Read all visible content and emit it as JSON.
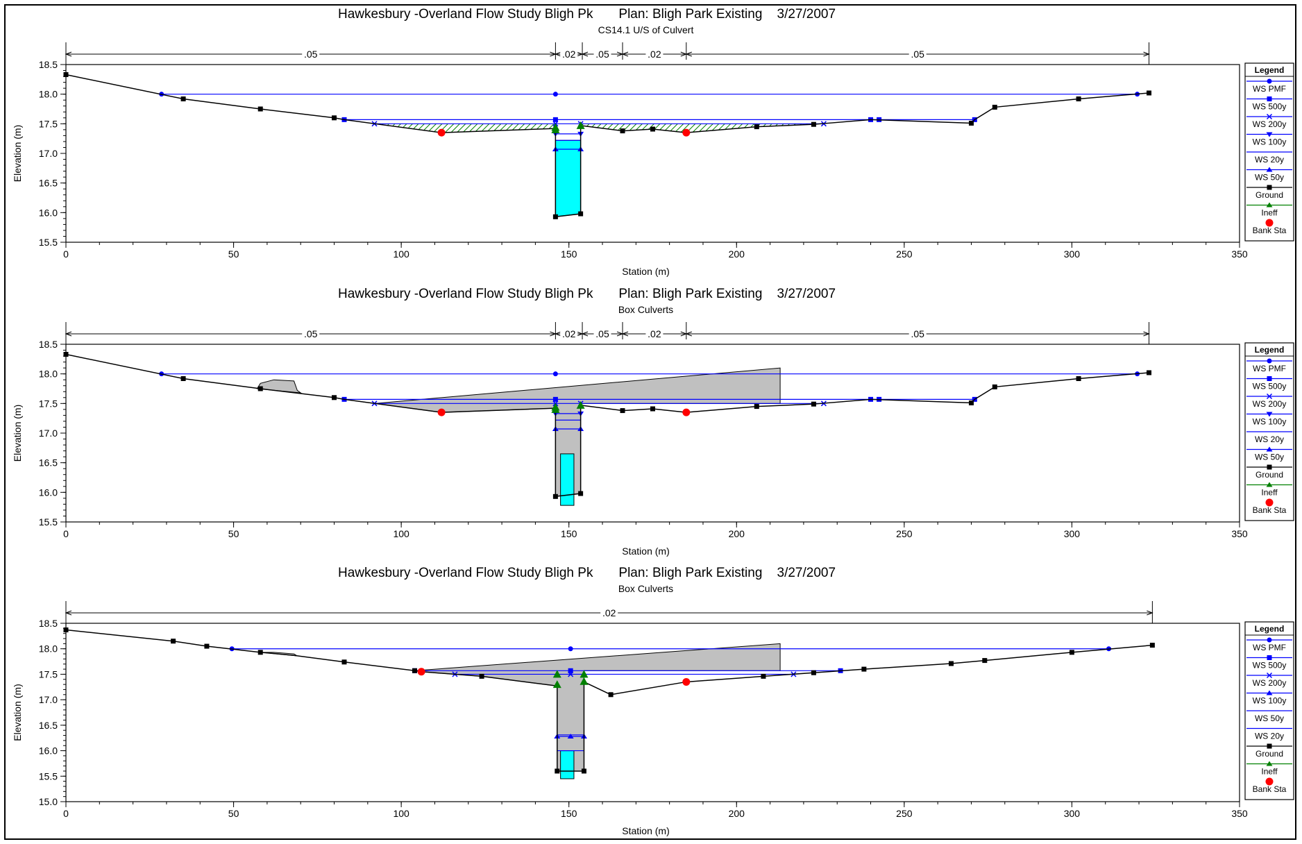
{
  "legend_title": "Legend",
  "legend_items": [
    {
      "name": "WS PMF",
      "color": "#0000ff",
      "marker": "circle"
    },
    {
      "name": "WS 500y",
      "color": "#0000ff",
      "marker": "square"
    },
    {
      "name": "WS 200y",
      "color": "#0000ff",
      "marker": "x"
    },
    {
      "name": "WS 100y",
      "color": "#0000ff",
      "marker": "tri-down"
    },
    {
      "name": "WS 20y",
      "color": "#0000ff",
      "marker": "none"
    },
    {
      "name": "WS 50y",
      "color": "#0000ff",
      "marker": "tri-up"
    },
    {
      "name": "Ground",
      "color": "#000000",
      "marker": "square"
    },
    {
      "name": "Ineff",
      "color": "#008000",
      "marker": "tri-up-large"
    },
    {
      "name": "Bank Sta",
      "color": "#ff0000",
      "marker": "circle-large"
    }
  ],
  "colors": {
    "water": "#0000ff",
    "ground": "#000000",
    "ineff": "#008000",
    "bank": "#ff0000",
    "culvert": "#00ffff",
    "deck": "#c0c0c0"
  },
  "chart_data": [
    {
      "type": "line",
      "title": "Hawkesbury -Overland Flow Study Bligh Pk       Plan: Bligh Park Existing    3/27/2007",
      "subtitle": "CS14.1 U/S of Culvert",
      "xlabel": "Station (m)",
      "ylabel": "Elevation (m)",
      "xlim": [
        0,
        350
      ],
      "ylim": [
        15.5,
        18.5
      ],
      "xticks": [
        0,
        50,
        100,
        150,
        200,
        250,
        300,
        350
      ],
      "yticks": [
        15.5,
        16.0,
        16.5,
        17.0,
        17.5,
        18.0,
        18.5
      ],
      "ytick_labels": [
        "15.5",
        "16.0",
        "16.5",
        "17.0",
        "17.5",
        "18.0",
        "18.5"
      ],
      "manning": [
        {
          "from": 0,
          "to": 146,
          "n": ".05"
        },
        {
          "from": 146,
          "to": 154,
          "n": ".02"
        },
        {
          "from": 154,
          "to": 166,
          "n": ".05"
        },
        {
          "from": 166,
          "to": 185,
          "n": ".02"
        },
        {
          "from": 185,
          "to": 323,
          "n": ".05"
        }
      ],
      "ground": [
        [
          0,
          18.33
        ],
        [
          35,
          17.92
        ],
        [
          58,
          17.75
        ],
        [
          80,
          17.6
        ],
        [
          83,
          17.57
        ],
        [
          112,
          17.35
        ],
        [
          146,
          17.42
        ],
        [
          146,
          15.93
        ],
        [
          153.5,
          15.98
        ],
        [
          153.5,
          17.47
        ],
        [
          166,
          17.38
        ],
        [
          175,
          17.41
        ],
        [
          185,
          17.35
        ],
        [
          206,
          17.45
        ],
        [
          223,
          17.49
        ],
        [
          240,
          17.57
        ],
        [
          270,
          17.51
        ],
        [
          271,
          17.57
        ],
        [
          277,
          17.78
        ],
        [
          302,
          17.92
        ],
        [
          323,
          18.02
        ]
      ],
      "ground_markers": [
        [
          0,
          18.33
        ],
        [
          35,
          17.92
        ],
        [
          58,
          17.75
        ],
        [
          80,
          17.6
        ],
        [
          146,
          15.93
        ],
        [
          153.5,
          15.98
        ],
        [
          166,
          17.38
        ],
        [
          175,
          17.41
        ],
        [
          206,
          17.45
        ],
        [
          223,
          17.49
        ],
        [
          270,
          17.51
        ],
        [
          277,
          17.78
        ],
        [
          302,
          17.92
        ],
        [
          323,
          18.02
        ]
      ],
      "water_surfaces": [
        {
          "name": "WS PMF",
          "marker": "circle",
          "y": 18.0,
          "x": [
            28.5,
            319.5
          ],
          "marks": [
            28.5,
            146,
            319.5
          ]
        },
        {
          "name": "WS 500y",
          "marker": "square",
          "y": 17.57,
          "x": [
            83,
            271
          ],
          "marks": [
            83,
            146,
            240,
            242.5,
            271
          ]
        },
        {
          "name": "WS 200y",
          "marker": "x",
          "y": 17.5,
          "x": [
            92,
            226
          ],
          "marks": [
            92,
            146,
            153.5,
            226
          ]
        },
        {
          "name": "WS 100y",
          "marker": "tri-down",
          "y": 17.33,
          "x": [
            146,
            153.5
          ],
          "marks": [
            146,
            153.5
          ]
        },
        {
          "name": "WS 20y",
          "marker": "none",
          "y": 17.22,
          "x": [
            146,
            153.5
          ],
          "marks": []
        },
        {
          "name": "WS 50y",
          "marker": "tri-up",
          "y": 17.07,
          "x": [
            146,
            153.5
          ],
          "marks": [
            146,
            153.5
          ]
        }
      ],
      "culverts": [
        {
          "x0": 146,
          "x1": 153.5,
          "y0": 15.93,
          "y1": 17.22,
          "bottom_right": 15.98
        }
      ],
      "ineff": [
        [
          146,
          17.44
        ],
        [
          146,
          17.4
        ],
        [
          153.5,
          17.47
        ]
      ],
      "bank": [
        [
          112,
          17.35
        ],
        [
          185,
          17.35
        ]
      ],
      "hatched": true,
      "deck": null
    },
    {
      "type": "line",
      "title": "Hawkesbury -Overland Flow Study Bligh Pk       Plan: Bligh Park Existing    3/27/2007",
      "subtitle": "Box Culverts",
      "xlabel": "Station (m)",
      "ylabel": "Elevation (m)",
      "xlim": [
        0,
        350
      ],
      "ylim": [
        15.5,
        18.5
      ],
      "xticks": [
        0,
        50,
        100,
        150,
        200,
        250,
        300,
        350
      ],
      "yticks": [
        15.5,
        16.0,
        16.5,
        17.0,
        17.5,
        18.0,
        18.5
      ],
      "ytick_labels": [
        "15.5",
        "16.0",
        "16.5",
        "17.0",
        "17.5",
        "18.0",
        "18.5"
      ],
      "manning": [
        {
          "from": 0,
          "to": 146,
          "n": ".05"
        },
        {
          "from": 146,
          "to": 154,
          "n": ".02"
        },
        {
          "from": 154,
          "to": 166,
          "n": ".05"
        },
        {
          "from": 166,
          "to": 185,
          "n": ".02"
        },
        {
          "from": 185,
          "to": 323,
          "n": ".05"
        }
      ],
      "ground": [
        [
          0,
          18.33
        ],
        [
          35,
          17.92
        ],
        [
          58,
          17.75
        ],
        [
          80,
          17.6
        ],
        [
          83,
          17.57
        ],
        [
          112,
          17.35
        ],
        [
          146,
          17.42
        ],
        [
          146,
          15.93
        ],
        [
          153.5,
          15.98
        ],
        [
          153.5,
          17.47
        ],
        [
          166,
          17.38
        ],
        [
          175,
          17.41
        ],
        [
          185,
          17.35
        ],
        [
          206,
          17.45
        ],
        [
          223,
          17.49
        ],
        [
          240,
          17.57
        ],
        [
          270,
          17.51
        ],
        [
          271,
          17.57
        ],
        [
          277,
          17.78
        ],
        [
          302,
          17.92
        ],
        [
          323,
          18.02
        ]
      ],
      "ground_markers": [
        [
          0,
          18.33
        ],
        [
          35,
          17.92
        ],
        [
          58,
          17.75
        ],
        [
          80,
          17.6
        ],
        [
          146,
          15.93
        ],
        [
          153.5,
          15.98
        ],
        [
          166,
          17.38
        ],
        [
          175,
          17.41
        ],
        [
          206,
          17.45
        ],
        [
          223,
          17.49
        ],
        [
          270,
          17.51
        ],
        [
          277,
          17.78
        ],
        [
          302,
          17.92
        ],
        [
          323,
          18.02
        ]
      ],
      "water_surfaces": [
        {
          "name": "WS PMF",
          "marker": "circle",
          "y": 18.0,
          "x": [
            28.5,
            319.5
          ],
          "marks": [
            28.5,
            146,
            319.5
          ]
        },
        {
          "name": "WS 500y",
          "marker": "square",
          "y": 17.57,
          "x": [
            83,
            271
          ],
          "marks": [
            83,
            146,
            240,
            242.5,
            271
          ]
        },
        {
          "name": "WS 200y",
          "marker": "x",
          "y": 17.5,
          "x": [
            92,
            226
          ],
          "marks": [
            92,
            146,
            153.5,
            226
          ]
        },
        {
          "name": "WS 100y",
          "marker": "tri-down",
          "y": 17.33,
          "x": [
            146,
            153.5
          ],
          "marks": [
            146,
            153.5
          ]
        },
        {
          "name": "WS 20y",
          "marker": "none",
          "y": 17.22,
          "x": [
            146,
            153.5
          ],
          "marks": []
        },
        {
          "name": "WS 50y",
          "marker": "tri-up",
          "y": 17.07,
          "x": [
            146,
            153.5
          ],
          "marks": [
            146,
            153.5
          ]
        }
      ],
      "culverts": [
        {
          "x0": 147.5,
          "x1": 151.5,
          "y0": 15.78,
          "y1": 16.65,
          "bottom_right": 15.78
        }
      ],
      "ineff": [
        [
          146,
          17.44
        ],
        [
          146,
          17.4
        ],
        [
          153.5,
          17.47
        ]
      ],
      "bank": [
        [
          112,
          17.35
        ],
        [
          185,
          17.35
        ]
      ],
      "hatched": false,
      "deck": {
        "polygon": [
          [
            92,
            17.5
          ],
          [
            213,
            18.1
          ],
          [
            213,
            17.5
          ],
          [
            153.5,
            17.5
          ],
          [
            153.5,
            15.98
          ],
          [
            146,
            15.93
          ],
          [
            146,
            17.42
          ],
          [
            112,
            17.35
          ],
          [
            83,
            17.57
          ]
        ],
        "road": [
          [
            57,
            17.75
          ],
          [
            58,
            17.84
          ],
          [
            62,
            17.9
          ],
          [
            68,
            17.88
          ],
          [
            69,
            17.72
          ],
          [
            70,
            17.68
          ]
        ]
      }
    },
    {
      "type": "line",
      "title": "Hawkesbury -Overland Flow Study Bligh Pk       Plan: Bligh Park Existing    3/27/2007",
      "subtitle": "Box Culverts",
      "xlabel": "Station (m)",
      "ylabel": "Elevation (m)",
      "xlim": [
        0,
        350
      ],
      "ylim": [
        15.0,
        18.5
      ],
      "xticks": [
        0,
        50,
        100,
        150,
        200,
        250,
        300,
        350
      ],
      "yticks": [
        15.0,
        15.5,
        16.0,
        16.5,
        17.0,
        17.5,
        18.0,
        18.5
      ],
      "ytick_labels": [
        "15.0",
        "15.5",
        "16.0",
        "16.5",
        "17.0",
        "17.5",
        "18.0",
        "18.5"
      ],
      "manning": [
        {
          "from": 0,
          "to": 324,
          "n": ".02"
        }
      ],
      "ground": [
        [
          0,
          18.37
        ],
        [
          32,
          18.15
        ],
        [
          42,
          18.05
        ],
        [
          58,
          17.93
        ],
        [
          68,
          17.87
        ],
        [
          83,
          17.74
        ],
        [
          104,
          17.57
        ],
        [
          106,
          17.55
        ],
        [
          124,
          17.46
        ],
        [
          146.5,
          17.27
        ],
        [
          146.5,
          15.6
        ],
        [
          154.5,
          15.6
        ],
        [
          154.5,
          17.35
        ],
        [
          162.5,
          17.1
        ],
        [
          185,
          17.35
        ],
        [
          208,
          17.46
        ],
        [
          223,
          17.53
        ],
        [
          238,
          17.6
        ],
        [
          264,
          17.71
        ],
        [
          274,
          17.77
        ],
        [
          300,
          17.93
        ],
        [
          324,
          18.07
        ]
      ],
      "ground_markers": [
        [
          0,
          18.37
        ],
        [
          32,
          18.15
        ],
        [
          42,
          18.05
        ],
        [
          58,
          17.93
        ],
        [
          83,
          17.74
        ],
        [
          104,
          17.57
        ],
        [
          124,
          17.46
        ],
        [
          146.5,
          15.6
        ],
        [
          154.5,
          15.6
        ],
        [
          162.5,
          17.1
        ],
        [
          208,
          17.46
        ],
        [
          223,
          17.53
        ],
        [
          238,
          17.6
        ],
        [
          264,
          17.71
        ],
        [
          274,
          17.77
        ],
        [
          300,
          17.93
        ],
        [
          324,
          18.07
        ]
      ],
      "water_surfaces": [
        {
          "name": "WS PMF",
          "marker": "circle",
          "y": 18.0,
          "x": [
            49.5,
            311
          ],
          "marks": [
            49.5,
            150.5,
            311
          ]
        },
        {
          "name": "WS 500y",
          "marker": "square",
          "y": 17.57,
          "x": [
            104,
            231
          ],
          "marks": [
            104,
            150.5,
            231
          ]
        },
        {
          "name": "WS 200y",
          "marker": "x",
          "y": 17.5,
          "x": [
            116,
            217
          ],
          "marks": [
            116,
            150.5,
            217
          ]
        },
        {
          "name": "WS 100y",
          "marker": "none",
          "y": 16.31,
          "x": [
            146.5,
            154.5
          ],
          "marks": [
            146.5,
            150.5,
            154.5
          ]
        },
        {
          "name": "WS 50y",
          "marker": "tri-up",
          "y": 16.28,
          "x": [
            146.5,
            154.5
          ],
          "marks": [
            146.5,
            150.5,
            154.5
          ]
        },
        {
          "name": "WS 20y",
          "marker": "none",
          "y": 16.0,
          "x": [
            146.5,
            154.5
          ],
          "marks": []
        }
      ],
      "culverts": [
        {
          "x0": 147.5,
          "x1": 151.5,
          "y0": 15.45,
          "y1": 16.0,
          "bottom_right": 15.45
        }
      ],
      "ineff": [
        [
          146.5,
          17.5
        ],
        [
          146.5,
          17.3
        ],
        [
          154.5,
          17.5
        ],
        [
          154.5,
          17.36
        ]
      ],
      "bank": [
        [
          106,
          17.55
        ],
        [
          185,
          17.35
        ]
      ],
      "hatched": false,
      "deck": {
        "polygon": [
          [
            104,
            17.57
          ],
          [
            213,
            18.1
          ],
          [
            213,
            17.57
          ],
          [
            154.5,
            17.57
          ],
          [
            154.5,
            15.6
          ],
          [
            146.5,
            15.6
          ],
          [
            146.5,
            17.27
          ],
          [
            124,
            17.46
          ],
          [
            106,
            17.55
          ]
        ],
        "road": [
          [
            58,
            17.93
          ],
          [
            62,
            17.93
          ],
          [
            68,
            17.9
          ],
          [
            69,
            17.86
          ]
        ]
      }
    }
  ]
}
